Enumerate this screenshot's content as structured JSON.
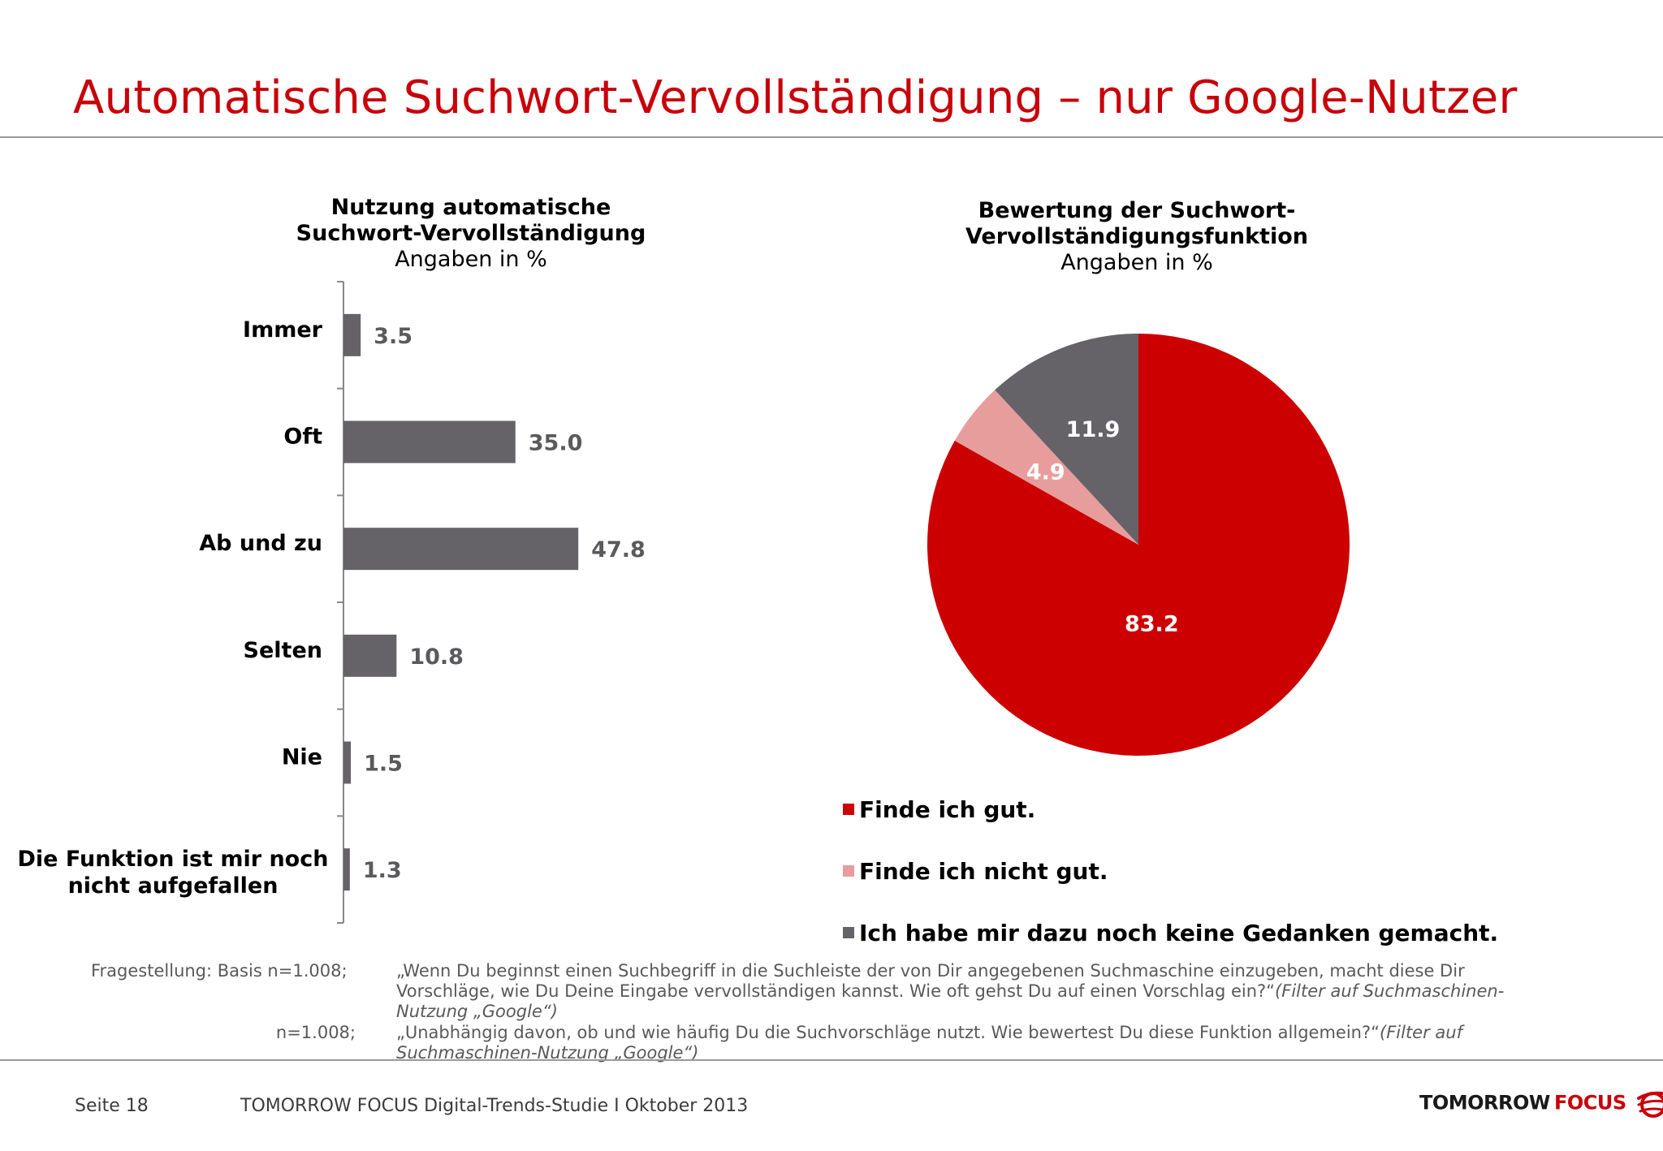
{
  "title": "Automatische Suchwort-Vervollständigung – nur Google-Nutzer",
  "colors": {
    "accent": "#c8000a",
    "bar": "#656367",
    "pie_good": "#cc0000",
    "pie_notgood": "#e89d9d",
    "pie_none": "#656367"
  },
  "bar_chart": {
    "title_line1": "Nutzung automatische",
    "title_line2": "Suchwort-Vervollständigung",
    "subtitle": "Angaben in %"
  },
  "pie_chart": {
    "title_line1": "Bewertung der Suchwort-",
    "title_line2": "Vervollständigungsfunktion",
    "subtitle": "Angaben in %"
  },
  "chart_data": [
    {
      "type": "bar",
      "orientation": "horizontal",
      "title": "Nutzung automatische Suchwort-Vervollständigung",
      "subtitle": "Angaben in %",
      "categories": [
        "Immer",
        "Oft",
        "Ab und zu",
        "Selten",
        "Nie",
        "Die Funktion ist mir noch nicht aufgefallen"
      ],
      "category_lines": [
        [
          "Immer"
        ],
        [
          "Oft"
        ],
        [
          "Ab und zu"
        ],
        [
          "Selten"
        ],
        [
          "Nie"
        ],
        [
          "Die Funktion ist mir noch",
          "nicht aufgefallen"
        ]
      ],
      "values": [
        3.5,
        35.0,
        47.8,
        10.8,
        1.5,
        1.3
      ],
      "value_labels": [
        "3.5",
        "35.0",
        "47.8",
        "10.8",
        "1.5",
        "1.3"
      ],
      "xlim": [
        0,
        100
      ],
      "grid": false
    },
    {
      "type": "pie",
      "title": "Bewertung der Suchwort-Vervollständigungsfunktion",
      "subtitle": "Angaben in %",
      "labels": [
        "Finde ich gut.",
        "Finde ich nicht gut.",
        "Ich habe mir dazu noch keine Gedanken gemacht."
      ],
      "values": [
        83.2,
        4.9,
        11.9
      ],
      "value_labels": [
        "83.2",
        "4.9",
        "11.9"
      ],
      "colors": [
        "#cc0000",
        "#e89d9d",
        "#656367"
      ],
      "legend_position": "bottom-left"
    }
  ],
  "legend": [
    {
      "label": "Finde ich gut.",
      "color": "#cc0000"
    },
    {
      "label": "Finde ich nicht gut.",
      "color": "#e89d9d"
    },
    {
      "label": "Ich habe mir dazu noch keine Gedanken gemacht.",
      "color": "#656367"
    }
  ],
  "notes": {
    "label1": "Fragestellung: Basis n=1.008;",
    "text1_main": "„Wenn Du beginnst einen Suchbegriff in die Suchleiste der von Dir angegebenen Suchmaschine einzugeben, macht diese Dir Vorschläge, wie Du Deine Eingabe vervollständigen kannst. Wie oft gehst Du auf einen Vorschlag ein?“",
    "text1_italic": "(Filter auf Suchmaschinen-Nutzung „Google“)",
    "label2": "n=1.008;",
    "text2_main": "„Unabhängig davon, ob und wie häufig Du die Suchvorschläge nutzt. Wie bewertest Du diese Funktion allgemein?“",
    "text2_italic": "(Filter auf Suchmaschinen-Nutzung „Google“)"
  },
  "footer": {
    "page": "Seite 18",
    "study": "TOMORROW FOCUS Digital-Trends-Studie I Oktober 2013",
    "logo_part1": "TOMORROW",
    "logo_part2": "FOCUS"
  }
}
